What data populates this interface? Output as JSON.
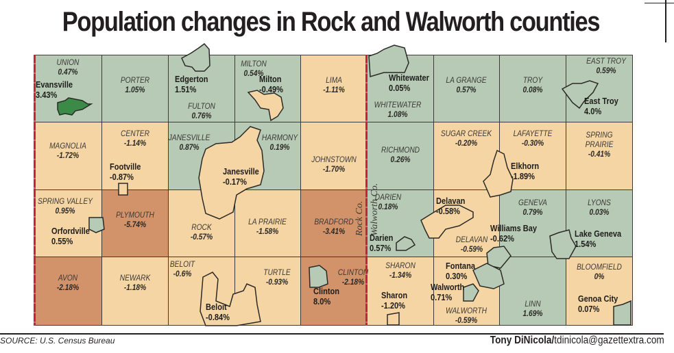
{
  "title": "Population changes in Rock and Walworth counties",
  "colors": {
    "growth": "#b6cab5",
    "decline": "#f6d5a4",
    "large_decline": "#d2936b",
    "evansville_highlight": "#3b8a48",
    "county_line": "#c8213a"
  },
  "counties": {
    "rock": "Rock Co.",
    "walworth": "Walworth Co."
  },
  "towns": [
    {
      "name": "UNION",
      "change": "0.47%",
      "fill": "g"
    },
    {
      "name": "PORTER",
      "change": "1.05%",
      "fill": "g"
    },
    {
      "name": "FULTON",
      "change": "0.76%",
      "fill": "g"
    },
    {
      "name": "MILTON",
      "change": "0.54%",
      "fill": "g"
    },
    {
      "name": "LIMA",
      "change": "-1.11%",
      "fill": "t"
    },
    {
      "name": "WHITEWATER",
      "change": "1.08%",
      "fill": "g"
    },
    {
      "name": "LA GRANGE",
      "change": "0.57%",
      "fill": "g"
    },
    {
      "name": "TROY",
      "change": "0.08%",
      "fill": "g"
    },
    {
      "name": "EAST TROY",
      "change": "0.59%",
      "fill": "g"
    },
    {
      "name": "MAGNOLIA",
      "change": "-1.72%",
      "fill": "t"
    },
    {
      "name": "CENTER",
      "change": "-1.14%",
      "fill": "t"
    },
    {
      "name": "JANESVILLE",
      "change": "0.87%",
      "fill": "g"
    },
    {
      "name": "HARMONY",
      "change": "0.19%",
      "fill": "g"
    },
    {
      "name": "JOHNSTOWN",
      "change": "-1.70%",
      "fill": "t"
    },
    {
      "name": "RICHMOND",
      "change": "0.26%",
      "fill": "g"
    },
    {
      "name": "SUGAR CREEK",
      "change": "-0.20%",
      "fill": "t"
    },
    {
      "name": "LAFAYETTE",
      "change": "-0.30%",
      "fill": "t"
    },
    {
      "name": "SPRING PRAIRIE",
      "change": "-0.41%",
      "fill": "t"
    },
    {
      "name": "SPRING VALLEY",
      "change": "0.95%",
      "fill": "t"
    },
    {
      "name": "PLYMOUTH",
      "change": "-5.74%",
      "fill": "o"
    },
    {
      "name": "ROCK",
      "change": "-0.57%",
      "fill": "t"
    },
    {
      "name": "LA PRAIRIE",
      "change": "-1.58%",
      "fill": "t"
    },
    {
      "name": "BRADFORD",
      "change": "-3.41%",
      "fill": "o"
    },
    {
      "name": "DARIEN",
      "change": "0.18%",
      "fill": "g"
    },
    {
      "name": "DELAVAN",
      "change": "-0.59%",
      "fill": "t"
    },
    {
      "name": "GENEVA",
      "change": "0.79%",
      "fill": "g"
    },
    {
      "name": "LYONS",
      "change": "0.03%",
      "fill": "g"
    },
    {
      "name": "AVON",
      "change": "-2.18%",
      "fill": "o"
    },
    {
      "name": "NEWARK",
      "change": "-1.18%",
      "fill": "t"
    },
    {
      "name": "BELOIT",
      "change": "-0.6%",
      "fill": "t"
    },
    {
      "name": "TURTLE",
      "change": "-0.93%",
      "fill": "t"
    },
    {
      "name": "CLINTON",
      "change": "-2.18%",
      "fill": "o"
    },
    {
      "name": "SHARON",
      "change": "-1.34%",
      "fill": "t"
    },
    {
      "name": "WALWORTH",
      "change": "-0.59%",
      "fill": "t"
    },
    {
      "name": "LINN",
      "change": "1.69%",
      "fill": "g"
    },
    {
      "name": "BLOOMFIELD",
      "change": "0%",
      "fill": "t"
    }
  ],
  "cities": [
    {
      "name": "Evansville",
      "change": "3.43%"
    },
    {
      "name": "Edgerton",
      "change": "1.51%"
    },
    {
      "name": "Milton",
      "change": "-0.49%"
    },
    {
      "name": "Footville",
      "change": "-0.87%"
    },
    {
      "name": "Janesville",
      "change": "-0.17%"
    },
    {
      "name": "Orfordville",
      "change": "0.55%"
    },
    {
      "name": "Beloit",
      "change": "-0.84%"
    },
    {
      "name": "Clinton",
      "change": "8.0%"
    },
    {
      "name": "Whitewater",
      "change": "0.05%"
    },
    {
      "name": "East Troy",
      "change": "4.0%"
    },
    {
      "name": "Elkhorn",
      "change": "-1.89%"
    },
    {
      "name": "Delavan",
      "change": "-0.58%"
    },
    {
      "name": "Darien",
      "change": "0.57%"
    },
    {
      "name": "Williams Bay",
      "change": "-0.62%"
    },
    {
      "name": "Lake Geneva",
      "change": "1.54%"
    },
    {
      "name": "Fontana",
      "change": "0.30%"
    },
    {
      "name": "Walworth",
      "change": "0.71%"
    },
    {
      "name": "Sharon",
      "change": "-1.20%"
    },
    {
      "name": "Genoa City",
      "change": "0.07%"
    }
  ],
  "footer": {
    "source": "SOURCE: U.S. Census Bureau",
    "credit_name": "Tony DiNicola/",
    "credit_email": "tdinicola@gazettextra.com"
  }
}
